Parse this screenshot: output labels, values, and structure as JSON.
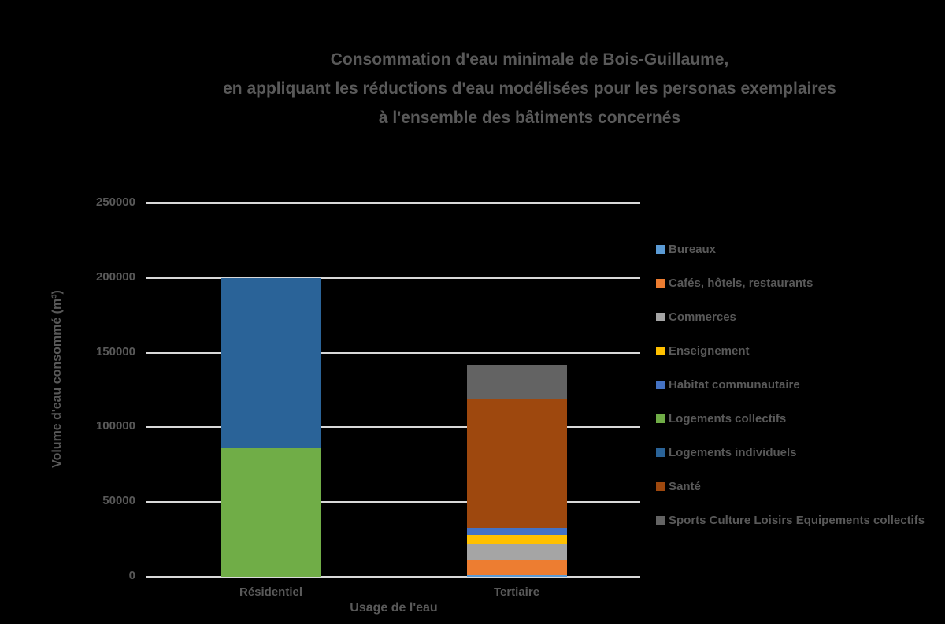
{
  "title": {
    "lines": [
      "Consommation d'eau minimale de Bois-Guillaume,",
      "en appliquant les réductions d'eau modélisées pour les personas exemplaires",
      "à l'ensemble des bâtiments concernés"
    ]
  },
  "colors": {
    "background": "#000000",
    "text": "#595959",
    "gridline": "#D9D9D9"
  },
  "chart_data": {
    "type": "bar",
    "stacked": true,
    "title": "Consommation d'eau minimale de Bois-Guillaume, en appliquant les réductions d'eau modélisées pour les personas exemplaires à l'ensemble des bâtiments concernés",
    "categories": [
      "Résidentiel",
      "Tertiaire"
    ],
    "series": [
      {
        "name": "Bureaux",
        "color": "#5B9BD5",
        "values": [
          0,
          1000
        ]
      },
      {
        "name": "Cafés, hôtels, restaurants",
        "color": "#ED7D31",
        "values": [
          0,
          10200
        ]
      },
      {
        "name": "Commerces",
        "color": "#A5A5A5",
        "values": [
          0,
          10300
        ]
      },
      {
        "name": "Enseignement",
        "color": "#FFC000",
        "values": [
          0,
          6300
        ]
      },
      {
        "name": "Habitat communautaire",
        "color": "#4472C4",
        "values": [
          0,
          5100
        ]
      },
      {
        "name": "Logements collectifs",
        "color": "#70AD47",
        "values": [
          86500,
          0
        ]
      },
      {
        "name": "Logements individuels",
        "color": "#2A6398",
        "values": [
          113500,
          0
        ]
      },
      {
        "name": "Santé",
        "color": "#9E480E",
        "values": [
          0,
          85700
        ]
      },
      {
        "name": "Sports Culture Loisirs Equipements collectifs",
        "color": "#636363",
        "values": [
          0,
          23100
        ]
      }
    ],
    "totals": {
      "Résidentiel": 200000,
      "Tertiaire": 141700
    },
    "xlabel": "Usage de l'eau",
    "ylabel": "Volume d'eau consommé (m³)",
    "ylim": [
      0,
      250000
    ],
    "yticks": [
      0,
      50000,
      100000,
      150000,
      200000,
      250000
    ],
    "grid": true,
    "legend_position": "right"
  }
}
